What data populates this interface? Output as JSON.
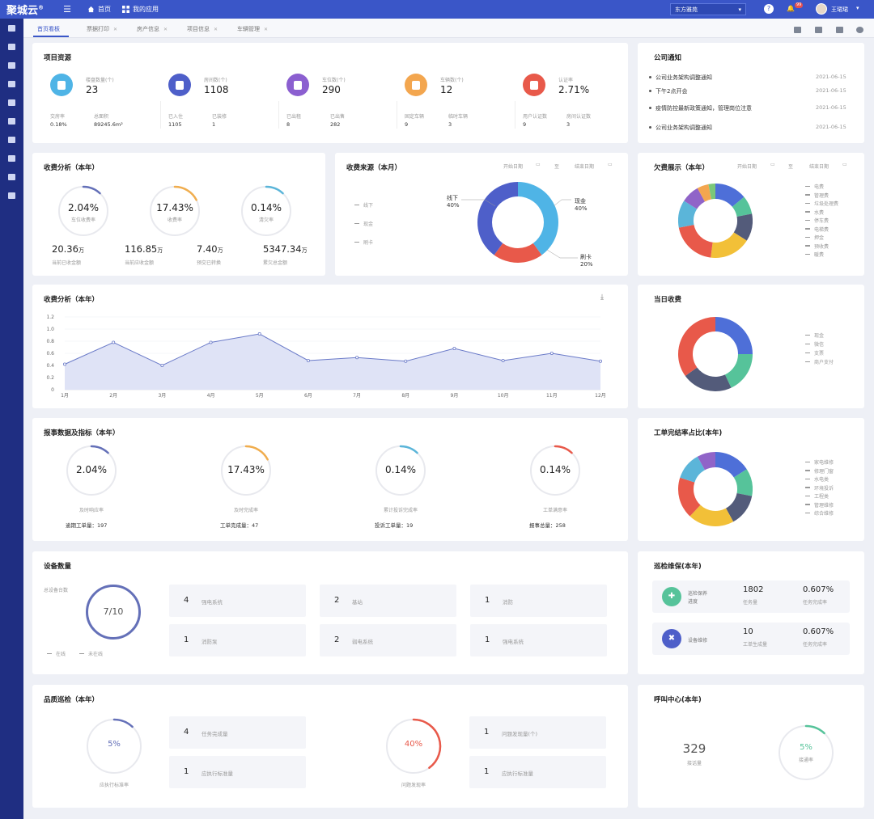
{
  "header": {
    "logo": "聚城云",
    "logo_mark": "®",
    "nav": [
      {
        "label": "首页",
        "icon": "home-icon"
      },
      {
        "label": "我的应用",
        "icon": "grid-icon"
      }
    ],
    "company": "东方雅苑",
    "user": "王珺珺",
    "notification_count": "99"
  },
  "sidebar": {
    "items": [
      "building-icon",
      "document-icon",
      "card-icon",
      "list-icon",
      "box-icon",
      "lock-icon",
      "wrench-icon",
      "house-icon",
      "location-icon",
      "chart-icon"
    ]
  },
  "tabs": [
    {
      "label": "首页看板",
      "active": true
    },
    {
      "label": "票据打印"
    },
    {
      "label": "房产信息"
    },
    {
      "label": "项目信息"
    },
    {
      "label": "车辆管理"
    }
  ],
  "resources": {
    "title": "项目资源",
    "items": [
      {
        "label": "楼盘数量(个)",
        "value": "23",
        "color": "#4fb4e6",
        "subs": [
          {
            "label": "交房率",
            "value": "0.18%"
          },
          {
            "label": "总面积",
            "value": "89245.6m²"
          }
        ]
      },
      {
        "label": "房间数(个)",
        "value": "1108",
        "color": "#4e5fc9",
        "subs": [
          {
            "label": "已入住",
            "value": "1105"
          },
          {
            "label": "已装修",
            "value": "1"
          }
        ]
      },
      {
        "label": "车位数(个)",
        "value": "290",
        "color": "#8b5fd0",
        "subs": [
          {
            "label": "已出租",
            "value": "8"
          },
          {
            "label": "已出售",
            "value": "282"
          }
        ]
      },
      {
        "label": "车辆数(个)",
        "value": "12",
        "color": "#f3a64f",
        "subs": [
          {
            "label": "固定车辆",
            "value": "9"
          },
          {
            "label": "临时车辆",
            "value": "3"
          }
        ]
      },
      {
        "label": "认证率",
        "value": "2.71%",
        "color": "#e8594a",
        "subs": [
          {
            "label": "用户认证数",
            "value": "9"
          },
          {
            "label": "房间认证数",
            "value": "3"
          }
        ]
      }
    ]
  },
  "notices": {
    "title": "公司通知",
    "items": [
      {
        "text": "公司业务架构调整通知",
        "date": "2021-06-15"
      },
      {
        "text": "下午2点开会",
        "date": "2021-06-15"
      },
      {
        "text": "疫情防控最新政策通知，管理岗位注意",
        "date": "2021-06-15"
      },
      {
        "text": "公司业务架构调整通知",
        "date": "2021-06-15"
      }
    ]
  },
  "fee_analysis": {
    "title": "收费分析（本年）",
    "rings": [
      {
        "value": "2.04%",
        "label": "车位收费率",
        "pct": 0.0204,
        "color": "#6470b8"
      },
      {
        "value": "17.43%",
        "label": "收费率",
        "pct": 0.1743,
        "color": "#f0ad4e"
      },
      {
        "value": "0.14%",
        "label": "清欠率",
        "pct": 0.0014,
        "color": "#5bb5d9"
      }
    ],
    "totals": [
      {
        "value": "20.36",
        "unit": "万",
        "label": "当前已收金额"
      },
      {
        "value": "116.85",
        "unit": "万",
        "label": "当前应收金额"
      },
      {
        "value": "7.40",
        "unit": "万",
        "label": "预交已转换"
      },
      {
        "value": "5347.34",
        "unit": "万",
        "label": "累欠总金额"
      }
    ]
  },
  "fee_source": {
    "title": "收费来源（本月）",
    "start": "开始日期",
    "end": "结束日期",
    "separator": "至",
    "legend": [
      "线下",
      "现金",
      "刷卡"
    ],
    "labels": [
      {
        "name": "线下",
        "pct": "40%"
      },
      {
        "name": "现金",
        "pct": "40%"
      },
      {
        "name": "刷卡",
        "pct": "20%"
      }
    ]
  },
  "arrears": {
    "title": "欠费展示（本年）",
    "start": "开始日期",
    "end": "结束日期",
    "separator": "至",
    "legend": [
      "电费",
      "管理费",
      "垃圾处理费",
      "水费",
      "停车费",
      "电梯费",
      "押金",
      "预收费",
      "暖费"
    ]
  },
  "fee_trend": {
    "title": "收费分析（本年）",
    "download_icon": "download-icon"
  },
  "daily_fee": {
    "title": "当日收费",
    "legend": [
      "现金",
      "微信",
      "支票",
      "商户支付"
    ]
  },
  "report": {
    "title": "报事数据及指标（本年）",
    "rings": [
      {
        "value": "2.04%",
        "label": "及时响应率",
        "pct": 0.0204,
        "color": "#6470b8",
        "foot": "逾期工单量：197"
      },
      {
        "value": "17.43%",
        "label": "及时完成率",
        "pct": 0.1743,
        "color": "#f0ad4e",
        "foot": "工单完成量：47"
      },
      {
        "value": "0.14%",
        "label": "累计投诉完成率",
        "pct": 0.0014,
        "color": "#5bb5d9",
        "foot": "投诉工单量：19"
      },
      {
        "value": "0.14%",
        "label": "工单满意率",
        "pct": 0.0014,
        "color": "#e8594a",
        "foot": "报事总量：258"
      }
    ]
  },
  "workorder": {
    "title": "工单完结率占比(本年)",
    "legend": [
      "家电维修",
      "修理门窗",
      "水电类",
      "环境投诉",
      "工程类",
      "管理维修",
      "综合维修"
    ]
  },
  "devices": {
    "title": "设备数量",
    "total_label": "总设备台数",
    "ring": "7/10",
    "legend": [
      "在线",
      "未在线"
    ],
    "tiles": [
      {
        "num": "4",
        "label": "强电系统"
      },
      {
        "num": "2",
        "label": "基站"
      },
      {
        "num": "1",
        "label": "消防"
      },
      {
        "num": "1",
        "label": "消防泵"
      },
      {
        "num": "2",
        "label": "弱电系统"
      },
      {
        "num": "1",
        "label": "强电系统"
      }
    ]
  },
  "patrol": {
    "title": "巡检维保(本年)",
    "rows": [
      {
        "icon": "shield-icon",
        "color": "#56c39a",
        "label": "巡检保养",
        "label2": "进度",
        "num": "1802",
        "num_label": "任务量",
        "pct": "0.607%",
        "pct_label": "任务完成率"
      },
      {
        "icon": "tools-icon",
        "color": "#4e5fc9",
        "label": "设备维修",
        "label2": "",
        "num": "10",
        "num_label": "工单生成量",
        "pct": "0.607%",
        "pct_label": "任务完成率"
      }
    ]
  },
  "quality": {
    "title": "品质巡检（本年）",
    "ring1": {
      "value": "5%",
      "label": "应执行标准率",
      "pct": 0.05,
      "color": "#6470b8"
    },
    "tiles1": [
      {
        "num": "4",
        "label": "任务完成量"
      },
      {
        "num": "1",
        "label": "应执行标准量"
      }
    ],
    "ring2": {
      "value": "40%",
      "label": "问题发现率",
      "pct": 0.4,
      "color": "#e8594a"
    },
    "tiles2": [
      {
        "num": "1",
        "label": "问题发现量(个)"
      },
      {
        "num": "1",
        "label": "应执行标准量"
      }
    ]
  },
  "callcenter": {
    "title": "呼叫中心(本年)",
    "num": "329",
    "num_label": "接话量",
    "ring": {
      "value": "5%",
      "label": "接通率",
      "pct": 0.05,
      "color": "#56c39a"
    }
  },
  "chart_data": [
    {
      "type": "line",
      "title": "收费分析（本年）",
      "categories": [
        "1月",
        "2月",
        "3月",
        "4月",
        "5月",
        "6月",
        "7月",
        "8月",
        "9月",
        "10月",
        "11月",
        "12月"
      ],
      "values": [
        0.42,
        0.78,
        0.4,
        0.78,
        0.92,
        0.48,
        0.53,
        0.47,
        0.68,
        0.48,
        0.6,
        0.47
      ],
      "ylim": [
        0,
        1.2
      ],
      "yticks": [
        "0",
        "0.2",
        "0.4",
        "0.6",
        "0.8",
        "1.0",
        "1.2"
      ],
      "color": "#6a7ac8"
    },
    {
      "type": "pie",
      "title": "收费来源（本月）",
      "series": [
        {
          "name": "现金",
          "value": 40,
          "color": "#4fb4e6"
        },
        {
          "name": "刷卡",
          "value": 20,
          "color": "#e8594a"
        },
        {
          "name": "线下",
          "value": 40,
          "color": "#4e5fc9"
        }
      ]
    },
    {
      "type": "pie",
      "title": "欠费展示（本年）",
      "series": [
        {
          "name": "电费",
          "value": 14,
          "color": "#4e6fd8"
        },
        {
          "name": "管理费",
          "value": 8,
          "color": "#56c39a"
        },
        {
          "name": "垃圾处理费",
          "value": 12,
          "color": "#535b7a"
        },
        {
          "name": "水费",
          "value": 18,
          "color": "#f2c038"
        },
        {
          "name": "停车费",
          "value": 20,
          "color": "#e8594a"
        },
        {
          "name": "电梯费",
          "value": 12,
          "color": "#5bb5d9"
        },
        {
          "name": "押金",
          "value": 8,
          "color": "#9064c8"
        },
        {
          "name": "预收费",
          "value": 5,
          "color": "#f3a64f"
        },
        {
          "name": "暖费",
          "value": 3,
          "color": "#7ac77a"
        }
      ]
    },
    {
      "type": "pie",
      "title": "当日收费",
      "series": [
        {
          "name": "现金",
          "value": 25,
          "color": "#4e6fd8"
        },
        {
          "name": "微信",
          "value": 18,
          "color": "#56c39a"
        },
        {
          "name": "支票",
          "value": 22,
          "color": "#535b7a"
        },
        {
          "name": "商户支付",
          "value": 35,
          "color": "#e8594a"
        }
      ]
    },
    {
      "type": "pie",
      "title": "工单完结率占比(本年)",
      "series": [
        {
          "name": "家电维修",
          "value": 16,
          "color": "#4e6fd8"
        },
        {
          "name": "修理门窗",
          "value": 12,
          "color": "#56c39a"
        },
        {
          "name": "水电类",
          "value": 14,
          "color": "#535b7a"
        },
        {
          "name": "环境投诉",
          "value": 20,
          "color": "#f2c038"
        },
        {
          "name": "工程类",
          "value": 18,
          "color": "#e8594a"
        },
        {
          "name": "管理维修",
          "value": 12,
          "color": "#5bb5d9"
        },
        {
          "name": "综合维修",
          "value": 8,
          "color": "#9064c8"
        }
      ]
    }
  ]
}
